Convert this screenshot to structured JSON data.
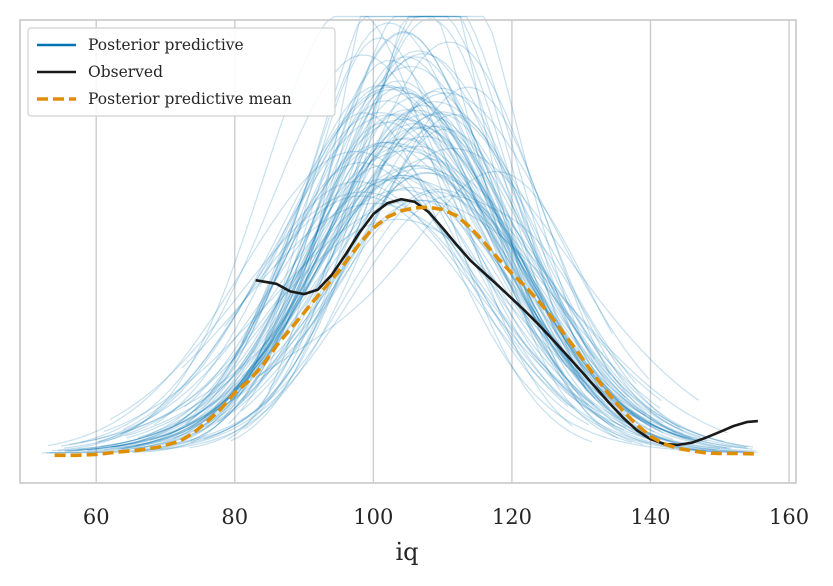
{
  "chart_data": {
    "type": "line",
    "title": "",
    "xlabel": "iq",
    "ylabel": "",
    "xlim": [
      49,
      161
    ],
    "ylim": [
      0,
      1
    ],
    "x_ticks": [
      60,
      80,
      100,
      120,
      140,
      160
    ],
    "x_tick_labels": [
      "60",
      "80",
      "100",
      "120",
      "140",
      "160"
    ],
    "grid": "vertical",
    "legend_position": "top-left",
    "legend": [
      {
        "label": "Posterior predictive",
        "color": "#0173b2",
        "style": "solid"
      },
      {
        "label": "Observed",
        "color": "#1a1a1a",
        "style": "solid"
      },
      {
        "label": "Posterior predictive mean",
        "color": "#de8f05",
        "style": "dashed"
      }
    ],
    "series": [
      {
        "name": "Observed",
        "x": [
          83,
          86,
          88,
          90,
          92,
          94,
          96,
          98,
          100,
          102,
          104,
          106,
          108,
          110,
          112,
          114,
          116,
          118,
          120,
          122,
          124,
          126,
          128,
          130,
          132,
          134,
          136,
          138,
          140,
          142,
          144,
          146,
          148,
          150,
          152,
          154,
          155.5
        ],
        "y": [
          0.404,
          0.396,
          0.379,
          0.373,
          0.383,
          0.416,
          0.461,
          0.51,
          0.551,
          0.575,
          0.584,
          0.578,
          0.555,
          0.52,
          0.483,
          0.448,
          0.42,
          0.392,
          0.363,
          0.334,
          0.303,
          0.27,
          0.236,
          0.202,
          0.167,
          0.132,
          0.099,
          0.071,
          0.051,
          0.04,
          0.038,
          0.043,
          0.054,
          0.067,
          0.08,
          0.089,
          0.091
        ]
      },
      {
        "name": "Posterior predictive mean",
        "x": [
          54,
          57,
          60,
          63,
          66,
          69,
          72,
          74,
          76,
          78,
          80,
          82,
          84,
          86,
          88,
          90,
          92,
          94,
          96,
          98,
          100,
          102,
          104,
          106,
          108,
          110,
          112,
          114,
          116,
          118,
          120,
          122,
          124,
          126,
          128,
          130,
          132,
          134,
          136,
          138,
          140,
          142,
          144,
          146,
          148,
          150,
          152,
          155.5
        ],
        "y": [
          0.015,
          0.015,
          0.017,
          0.022,
          0.026,
          0.033,
          0.046,
          0.064,
          0.09,
          0.118,
          0.154,
          0.18,
          0.214,
          0.258,
          0.295,
          0.332,
          0.369,
          0.405,
          0.444,
          0.485,
          0.52,
          0.544,
          0.558,
          0.565,
          0.566,
          0.561,
          0.547,
          0.521,
          0.488,
          0.452,
          0.419,
          0.389,
          0.355,
          0.316,
          0.275,
          0.233,
          0.19,
          0.151,
          0.114,
          0.083,
          0.057,
          0.04,
          0.03,
          0.025,
          0.02,
          0.019,
          0.019,
          0.018
        ]
      }
    ],
    "posterior_predictive_samples": {
      "name": "Posterior predictive",
      "count": 90,
      "color": "#0173b2",
      "opacity": 0.22
    }
  }
}
